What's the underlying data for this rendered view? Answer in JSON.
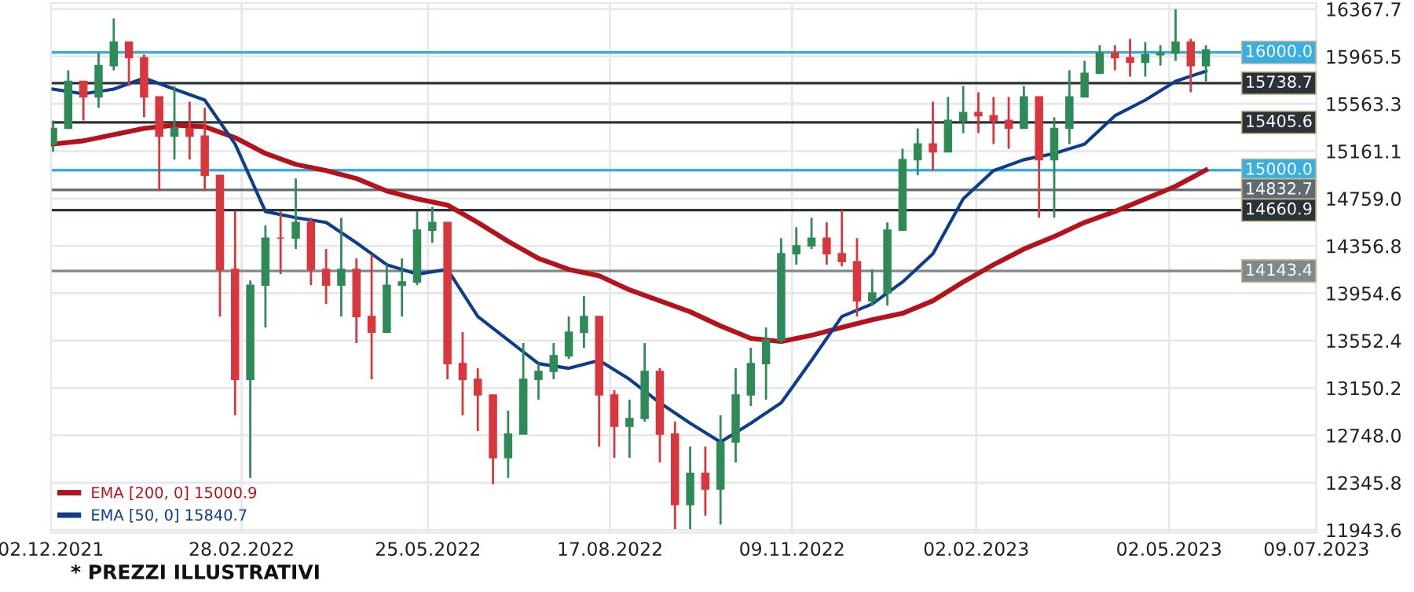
{
  "chart_data": {
    "type": "candlestick",
    "x": [
      "2021-12-03",
      "2021-12-10",
      "2021-12-17",
      "2021-12-24",
      "2021-12-31",
      "2022-01-07",
      "2022-01-14",
      "2022-01-21",
      "2022-01-28",
      "2022-02-04",
      "2022-02-11",
      "2022-02-18",
      "2022-02-25",
      "2022-03-04",
      "2022-03-11",
      "2022-03-18",
      "2022-03-25",
      "2022-04-01",
      "2022-04-08",
      "2022-04-15",
      "2022-04-22",
      "2022-04-29",
      "2022-05-06",
      "2022-05-13",
      "2022-05-20",
      "2022-05-27",
      "2022-06-03",
      "2022-06-10",
      "2022-06-17",
      "2022-06-24",
      "2022-07-01",
      "2022-07-08",
      "2022-07-15",
      "2022-07-22",
      "2022-07-29",
      "2022-08-05",
      "2022-08-12",
      "2022-08-19",
      "2022-08-26",
      "2022-09-02",
      "2022-09-09",
      "2022-09-16",
      "2022-09-23",
      "2022-09-30",
      "2022-10-07",
      "2022-10-14",
      "2022-10-21",
      "2022-10-28",
      "2022-11-04",
      "2022-11-11",
      "2022-11-18",
      "2022-11-25",
      "2022-12-02",
      "2022-12-09",
      "2022-12-16",
      "2022-12-23",
      "2022-12-30",
      "2023-01-06",
      "2023-01-13",
      "2023-01-20",
      "2023-01-27",
      "2023-02-03",
      "2023-02-10",
      "2023-02-17",
      "2023-02-24",
      "2023-03-03",
      "2023-03-10",
      "2023-03-17",
      "2023-03-24",
      "2023-03-31",
      "2023-04-07",
      "2023-04-14",
      "2023-04-21",
      "2023-04-28",
      "2023-05-05",
      "2023-05-12",
      "2023-05-19"
    ],
    "ohlc": [
      [
        15222,
        15422,
        15156,
        15355
      ],
      [
        15355,
        15848,
        15355,
        15755
      ],
      [
        15755,
        15755,
        15422,
        15622
      ],
      [
        15622,
        15995,
        15530,
        15888
      ],
      [
        15888,
        16288,
        15848,
        16088
      ],
      [
        16088,
        16088,
        15715,
        15955
      ],
      [
        15955,
        15981,
        15450,
        15622
      ],
      [
        15622,
        15622,
        14823,
        15289
      ],
      [
        15289,
        15715,
        15089,
        15355
      ],
      [
        15355,
        15582,
        15089,
        15289
      ],
      [
        15289,
        15530,
        14823,
        14956
      ],
      [
        14956,
        14956,
        13757,
        14157
      ],
      [
        14157,
        14650,
        12918,
        13224
      ],
      [
        13224,
        14063,
        12385,
        14023
      ],
      [
        14023,
        14530,
        13664,
        14423
      ],
      [
        14423,
        14650,
        14117,
        14423
      ],
      [
        14423,
        14930,
        14330,
        14556
      ],
      [
        14556,
        14596,
        14023,
        14157
      ],
      [
        14157,
        14330,
        13864,
        14023
      ],
      [
        14023,
        14596,
        13757,
        14157
      ],
      [
        14157,
        14250,
        13531,
        13757
      ],
      [
        13757,
        14290,
        13224,
        13624
      ],
      [
        13624,
        14197,
        13624,
        14023
      ],
      [
        14023,
        14250,
        13757,
        14050
      ],
      [
        14050,
        14650,
        14023,
        14490
      ],
      [
        14490,
        14689,
        14383,
        14556
      ],
      [
        14556,
        14556,
        13224,
        13357
      ],
      [
        13357,
        13624,
        12918,
        13224
      ],
      [
        13224,
        13318,
        12785,
        13091
      ],
      [
        13091,
        13091,
        12332,
        12558
      ],
      [
        12558,
        12958,
        12385,
        12758
      ],
      [
        12758,
        13531,
        12758,
        13224
      ],
      [
        13224,
        13357,
        13051,
        13291
      ],
      [
        13291,
        13531,
        13224,
        13424
      ],
      [
        13424,
        13757,
        13397,
        13624
      ],
      [
        13624,
        13930,
        13491,
        13757
      ],
      [
        13757,
        13757,
        12652,
        13091
      ],
      [
        13091,
        13131,
        12558,
        12825
      ],
      [
        12825,
        13051,
        12558,
        12891
      ],
      [
        12891,
        13531,
        12865,
        13291
      ],
      [
        13291,
        13318,
        12518,
        12758
      ],
      [
        12758,
        12865,
        11950,
        12159
      ],
      [
        12159,
        12652,
        11950,
        12425
      ],
      [
        12425,
        12652,
        12065,
        12292
      ],
      [
        12292,
        12918,
        11990,
        12691
      ],
      [
        12691,
        13318,
        12518,
        13091
      ],
      [
        13091,
        13491,
        12998,
        13357
      ],
      [
        13357,
        13664,
        13051,
        13557
      ],
      [
        13557,
        14423,
        13531,
        14290
      ],
      [
        14290,
        14516,
        14197,
        14357
      ],
      [
        14357,
        14596,
        14330,
        14423
      ],
      [
        14423,
        14556,
        14197,
        14290
      ],
      [
        14290,
        14663,
        14183,
        14223
      ],
      [
        14223,
        14423,
        13757,
        13890
      ],
      [
        13890,
        14157,
        13850,
        13957
      ],
      [
        13957,
        14556,
        13850,
        14490
      ],
      [
        14490,
        15182,
        14490,
        15089
      ],
      [
        15089,
        15355,
        14956,
        15222
      ],
      [
        15222,
        15582,
        14996,
        15156
      ],
      [
        15156,
        15622,
        15156,
        15422
      ],
      [
        15422,
        15715,
        15315,
        15489
      ],
      [
        15489,
        15662,
        15315,
        15462
      ],
      [
        15462,
        15622,
        15222,
        15422
      ],
      [
        15422,
        15622,
        15182,
        15355
      ],
      [
        15355,
        15715,
        15355,
        15622
      ],
      [
        15622,
        15622,
        14596,
        15089
      ],
      [
        15089,
        15449,
        14596,
        15355
      ],
      [
        15355,
        15848,
        15222,
        15622
      ],
      [
        15622,
        15928,
        15622,
        15822
      ],
      [
        15822,
        16061,
        15822,
        15995
      ],
      [
        15995,
        16061,
        15848,
        15955
      ],
      [
        15955,
        16115,
        15795,
        15915
      ],
      [
        15915,
        16088,
        15795,
        15981
      ],
      [
        15981,
        16061,
        15888,
        15995
      ],
      [
        15995,
        16367,
        15928,
        16088
      ],
      [
        16088,
        16115,
        15662,
        15888
      ],
      [
        15888,
        16061,
        15755,
        16021
      ]
    ],
    "colors": [
      "#2e8b57",
      "#2e8b57",
      "#d9363e",
      "#2e8b57",
      "#2e8b57",
      "#d9363e",
      "#d9363e",
      "#d9363e",
      "#2e8b57",
      "#d9363e",
      "#d9363e",
      "#d9363e",
      "#d9363e",
      "#2e8b57",
      "#2e8b57",
      "#d9363e",
      "#2e8b57",
      "#d9363e",
      "#d9363e",
      "#2e8b57",
      "#d9363e",
      "#d9363e",
      "#2e8b57",
      "#2e8b57",
      "#2e8b57",
      "#2e8b57",
      "#d9363e",
      "#d9363e",
      "#d9363e",
      "#d9363e",
      "#2e8b57",
      "#2e8b57",
      "#2e8b57",
      "#2e8b57",
      "#2e8b57",
      "#2e8b57",
      "#d9363e",
      "#d9363e",
      "#2e8b57",
      "#2e8b57",
      "#d9363e",
      "#d9363e",
      "#2e8b57",
      "#d9363e",
      "#2e8b57",
      "#2e8b57",
      "#2e8b57",
      "#2e8b57",
      "#2e8b57",
      "#2e8b57",
      "#2e8b57",
      "#d9363e",
      "#d9363e",
      "#d9363e",
      "#2e8b57",
      "#2e8b57",
      "#2e8b57",
      "#2e8b57",
      "#d9363e",
      "#2e8b57",
      "#2e8b57",
      "#d9363e",
      "#d9363e",
      "#d9363e",
      "#2e8b57",
      "#d9363e",
      "#2e8b57",
      "#2e8b57",
      "#2e8b57",
      "#2e8b57",
      "#d9363e",
      "#d9363e",
      "#2e8b57",
      "#2e8b57",
      "#2e8b57",
      "#d9363e",
      "#2e8b57"
    ],
    "series": [
      {
        "name": "EMA [200, 0] 15000.9",
        "type": "line",
        "color": "#b5121b",
        "x": [
          "2021-12-03",
          "2021-12-17",
          "2021-12-31",
          "2022-01-14",
          "2022-01-28",
          "2022-02-11",
          "2022-02-25",
          "2022-03-11",
          "2022-03-25",
          "2022-04-08",
          "2022-04-22",
          "2022-05-06",
          "2022-05-20",
          "2022-06-03",
          "2022-06-17",
          "2022-07-01",
          "2022-07-15",
          "2022-07-29",
          "2022-08-12",
          "2022-08-26",
          "2022-09-09",
          "2022-09-23",
          "2022-10-07",
          "2022-10-21",
          "2022-11-04",
          "2022-11-18",
          "2022-12-02",
          "2022-12-16",
          "2022-12-30",
          "2023-01-13",
          "2023-01-27",
          "2023-02-10",
          "2023-02-24",
          "2023-03-10",
          "2023-03-24",
          "2023-04-07",
          "2023-04-21",
          "2023-05-05",
          "2023-05-19"
        ],
        "values": [
          15222,
          15249,
          15302,
          15355,
          15382,
          15369,
          15276,
          15142,
          15049,
          14996,
          14929,
          14823,
          14756,
          14703,
          14556,
          14396,
          14250,
          14157,
          14103,
          13983,
          13890,
          13797,
          13677,
          13571,
          13544,
          13597,
          13664,
          13730,
          13784,
          13890,
          14050,
          14197,
          14330,
          14436,
          14556,
          14649,
          14756,
          14863,
          15000.9
        ]
      },
      {
        "name": "EMA [50, 0] 15840.7",
        "type": "line",
        "color": "#0d3d8c",
        "x": [
          "2021-12-03",
          "2021-12-17",
          "2021-12-31",
          "2022-01-14",
          "2022-01-28",
          "2022-02-11",
          "2022-02-25",
          "2022-03-11",
          "2022-03-25",
          "2022-04-08",
          "2022-04-22",
          "2022-05-06",
          "2022-05-20",
          "2022-06-03",
          "2022-06-17",
          "2022-07-01",
          "2022-07-15",
          "2022-07-29",
          "2022-08-12",
          "2022-08-26",
          "2022-09-09",
          "2022-09-23",
          "2022-10-07",
          "2022-10-21",
          "2022-11-04",
          "2022-11-18",
          "2022-12-02",
          "2022-12-16",
          "2022-12-30",
          "2023-01-13",
          "2023-01-27",
          "2023-02-10",
          "2023-02-24",
          "2023-03-10",
          "2023-03-24",
          "2023-04-07",
          "2023-04-21",
          "2023-05-05",
          "2023-05-19"
        ],
        "values": [
          15688,
          15648,
          15688,
          15782,
          15688,
          15595,
          15222,
          14649,
          14596,
          14556,
          14383,
          14197,
          14117,
          14157,
          13757,
          13557,
          13357,
          13317,
          13384,
          13224,
          13024,
          12851,
          12691,
          12851,
          13024,
          13384,
          13757,
          13864,
          14050,
          14290,
          14756,
          14996,
          15089,
          15142,
          15222,
          15462,
          15595,
          15755,
          15840.7
        ]
      }
    ],
    "ref_lines": [
      {
        "axis": "y",
        "value": 16000.0,
        "label": "16000.0",
        "color": "#3aaee0"
      },
      {
        "axis": "y",
        "value": 15738.7,
        "label": "15738.7",
        "color": "#2b3338"
      },
      {
        "axis": "y",
        "value": 15405.6,
        "label": "15405.6",
        "color": "#2b3338"
      },
      {
        "axis": "y",
        "value": 15000.0,
        "label": "15000.0",
        "color": "#3aaee0"
      },
      {
        "axis": "y",
        "value": 14832.7,
        "label": "14832.7",
        "color": "#5f6b70"
      },
      {
        "axis": "y",
        "value": 14660.9,
        "label": "14660.9",
        "color": "#2b3338"
      },
      {
        "axis": "y",
        "value": 14143.4,
        "label": "14143.4",
        "color": "#7d8a8c"
      }
    ],
    "xlim": [
      "2021-12-02",
      "2023-07-09"
    ],
    "xticks": [
      {
        "value": "2021-12-02",
        "label": "02.12.2021"
      },
      {
        "value": "2022-02-28",
        "label": "28.02.2022"
      },
      {
        "value": "2022-05-25",
        "label": "25.05.2022"
      },
      {
        "value": "2022-08-17",
        "label": "17.08.2022"
      },
      {
        "value": "2022-11-09",
        "label": "09.11.2022"
      },
      {
        "value": "2023-02-02",
        "label": "02.02.2023"
      },
      {
        "value": "2023-05-02",
        "label": "02.05.2023"
      },
      {
        "value": "2023-07-09",
        "label": "09.07.2023"
      }
    ],
    "ylim": [
      11920,
      16420
    ],
    "yticks": [
      11943.6,
      12345.8,
      {
        "value": 12748,
        "label": "12748.0"
      },
      13150.2,
      13552.4,
      13954.6,
      14356.8,
      {
        "value": 14759,
        "label": "14759.0"
      },
      15161.1,
      15563.3,
      15965.5,
      16367.7
    ],
    "grid": true,
    "legend": "bottom left",
    "annotations": [
      "* PREZZI ILLUSTRATIVI"
    ]
  }
}
